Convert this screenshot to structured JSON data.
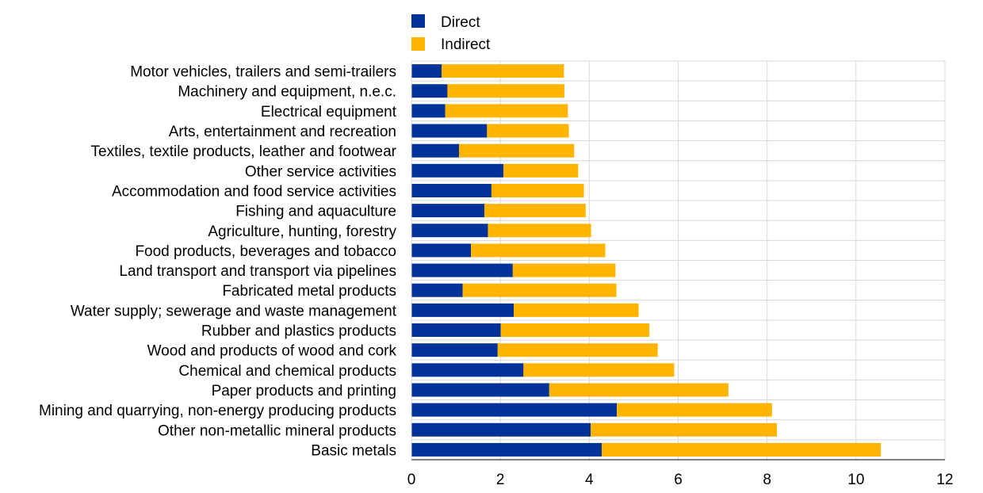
{
  "chart_data": {
    "type": "bar",
    "orientation": "horizontal",
    "stacked": true,
    "title": "",
    "xlabel": "",
    "ylabel": "",
    "xlim": [
      0,
      12
    ],
    "xticks": [
      0,
      2,
      4,
      6,
      8,
      10,
      12
    ],
    "grid": true,
    "legend_position": "top",
    "categories": [
      "Motor vehicles, trailers and semi-trailers",
      "Machinery and equipment, n.e.c.",
      "Electrical equipment",
      "Arts, entertainment and recreation",
      "Textiles, textile products, leather and footwear",
      "Other service activities",
      "Accommodation and food service activities",
      "Fishing and aquaculture",
      "Agriculture, hunting, forestry",
      "Food products, beverages and tobacco",
      "Land transport and transport via pipelines",
      "Fabricated metal products",
      "Water supply; sewerage and waste management",
      "Rubber and plastics products",
      "Wood and products of wood and cork",
      "Chemical and chemical products",
      "Paper products and printing",
      "Mining and quarrying, non-energy producing products",
      "Other non-metallic mineral products",
      "Basic metals"
    ],
    "series": [
      {
        "name": "Direct",
        "color": "#003299",
        "values": [
          0.68,
          0.81,
          0.76,
          1.7,
          1.07,
          2.07,
          1.8,
          1.64,
          1.72,
          1.34,
          2.28,
          1.15,
          2.3,
          2.01,
          1.94,
          2.52,
          3.1,
          4.62,
          4.03,
          4.28
        ]
      },
      {
        "name": "Indirect",
        "color": "#FFB400",
        "values": [
          2.75,
          2.63,
          2.76,
          1.84,
          2.59,
          1.68,
          2.08,
          2.28,
          2.32,
          3.02,
          2.31,
          3.46,
          2.81,
          3.34,
          3.6,
          3.39,
          4.03,
          3.49,
          4.19,
          6.28
        ]
      }
    ]
  }
}
